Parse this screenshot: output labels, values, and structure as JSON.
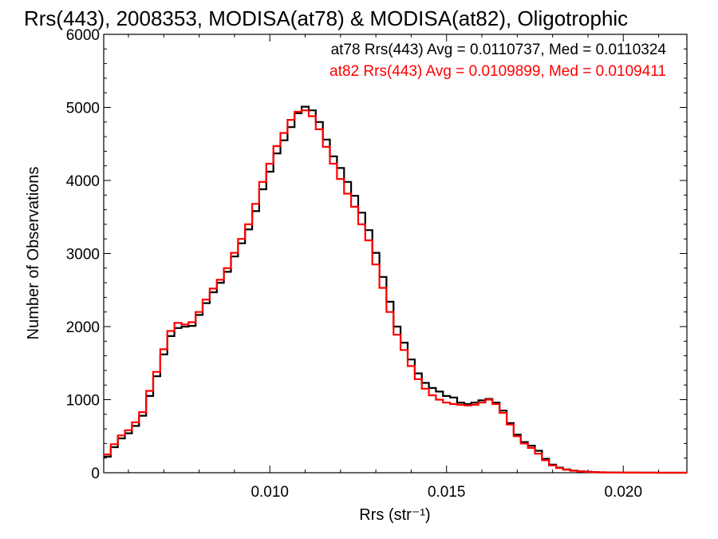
{
  "chart_data": {
    "type": "line",
    "title": "Rrs(443), 2008353, MODISA(at78) & MODISA(at82), Oligotrophic",
    "xlabel": "Rrs (str⁻¹)",
    "ylabel": "Number of Observations",
    "xlim": [
      0.0053,
      0.0218
    ],
    "ylim": [
      0,
      6000
    ],
    "x_ticks": [
      0.01,
      0.015,
      0.02
    ],
    "x_tick_labels": [
      "0.010",
      "0.015",
      "0.020"
    ],
    "y_ticks": [
      0,
      1000,
      2000,
      3000,
      4000,
      5000,
      6000
    ],
    "y_tick_labels": [
      "0",
      "1000",
      "2000",
      "3000",
      "4000",
      "5000",
      "6000"
    ],
    "grid": false,
    "legend_position": "top-right",
    "series": [
      {
        "name": "at78 Rrs(443) Avg = 0.0110737, Med = 0.0110324",
        "color": "#000000",
        "x": [
          0.0053,
          0.0055,
          0.0057,
          0.0059,
          0.0061,
          0.0063,
          0.0065,
          0.0067,
          0.0069,
          0.0071,
          0.0073,
          0.0075,
          0.0077,
          0.0079,
          0.0081,
          0.0083,
          0.0085,
          0.0087,
          0.0089,
          0.0091,
          0.0093,
          0.0095,
          0.0097,
          0.0099,
          0.0101,
          0.0103,
          0.0105,
          0.0107,
          0.0109,
          0.0111,
          0.0113,
          0.0115,
          0.0117,
          0.0119,
          0.0121,
          0.0123,
          0.0125,
          0.0127,
          0.0129,
          0.0131,
          0.0133,
          0.0135,
          0.0137,
          0.0139,
          0.0141,
          0.0143,
          0.0145,
          0.0147,
          0.0149,
          0.0151,
          0.0153,
          0.0155,
          0.0157,
          0.0159,
          0.0161,
          0.0163,
          0.0165,
          0.0167,
          0.0169,
          0.0171,
          0.0173,
          0.0175,
          0.0177,
          0.0179,
          0.0181,
          0.0183,
          0.0185,
          0.0187,
          0.0189,
          0.0191,
          0.0193,
          0.0195,
          0.0197,
          0.0199,
          0.0201,
          0.0205,
          0.021,
          0.0215,
          0.0218
        ],
        "values": [
          220,
          350,
          470,
          540,
          640,
          780,
          1050,
          1320,
          1620,
          1870,
          1980,
          2000,
          2010,
          2160,
          2320,
          2470,
          2600,
          2750,
          2960,
          3140,
          3330,
          3580,
          3880,
          4120,
          4370,
          4550,
          4730,
          4920,
          5010,
          4960,
          4800,
          4560,
          4330,
          4170,
          3980,
          3790,
          3560,
          3320,
          3010,
          2680,
          2340,
          2000,
          1780,
          1550,
          1360,
          1230,
          1160,
          1110,
          1050,
          1030,
          960,
          940,
          960,
          990,
          1010,
          960,
          850,
          680,
          520,
          420,
          370,
          300,
          190,
          110,
          70,
          45,
          30,
          20,
          14,
          9,
          6,
          4,
          3,
          2,
          1,
          1,
          0,
          0,
          0
        ]
      },
      {
        "name": "at82 Rrs(443) Avg = 0.0109899, Med = 0.0109411",
        "color": "#ff0000",
        "x": [
          0.0053,
          0.0055,
          0.0057,
          0.0059,
          0.0061,
          0.0063,
          0.0065,
          0.0067,
          0.0069,
          0.0071,
          0.0073,
          0.0075,
          0.0077,
          0.0079,
          0.0081,
          0.0083,
          0.0085,
          0.0087,
          0.0089,
          0.0091,
          0.0093,
          0.0095,
          0.0097,
          0.0099,
          0.0101,
          0.0103,
          0.0105,
          0.0107,
          0.0109,
          0.0111,
          0.0113,
          0.0115,
          0.0117,
          0.0119,
          0.0121,
          0.0123,
          0.0125,
          0.0127,
          0.0129,
          0.0131,
          0.0133,
          0.0135,
          0.0137,
          0.0139,
          0.0141,
          0.0143,
          0.0145,
          0.0147,
          0.0149,
          0.0151,
          0.0153,
          0.0155,
          0.0157,
          0.0159,
          0.0161,
          0.0163,
          0.0165,
          0.0167,
          0.0169,
          0.0171,
          0.0173,
          0.0175,
          0.0177,
          0.0179,
          0.0181,
          0.0183,
          0.0185,
          0.0187,
          0.0189,
          0.0191,
          0.0193,
          0.0195,
          0.0197,
          0.0199,
          0.0201,
          0.0205,
          0.021,
          0.0215,
          0.0218
        ],
        "values": [
          250,
          390,
          510,
          580,
          690,
          830,
          1120,
          1380,
          1690,
          1940,
          2050,
          2030,
          2060,
          2200,
          2370,
          2520,
          2640,
          2800,
          3010,
          3200,
          3400,
          3680,
          3980,
          4230,
          4470,
          4650,
          4830,
          4940,
          4960,
          4880,
          4700,
          4460,
          4230,
          4020,
          3820,
          3640,
          3400,
          3180,
          2850,
          2530,
          2200,
          1890,
          1680,
          1460,
          1280,
          1150,
          1060,
          1000,
          960,
          940,
          930,
          920,
          930,
          960,
          1000,
          940,
          820,
          660,
          500,
          400,
          340,
          260,
          170,
          100,
          65,
          40,
          27,
          18,
          12,
          8,
          5,
          3,
          2,
          1,
          1,
          0,
          0,
          0,
          0
        ]
      }
    ]
  }
}
